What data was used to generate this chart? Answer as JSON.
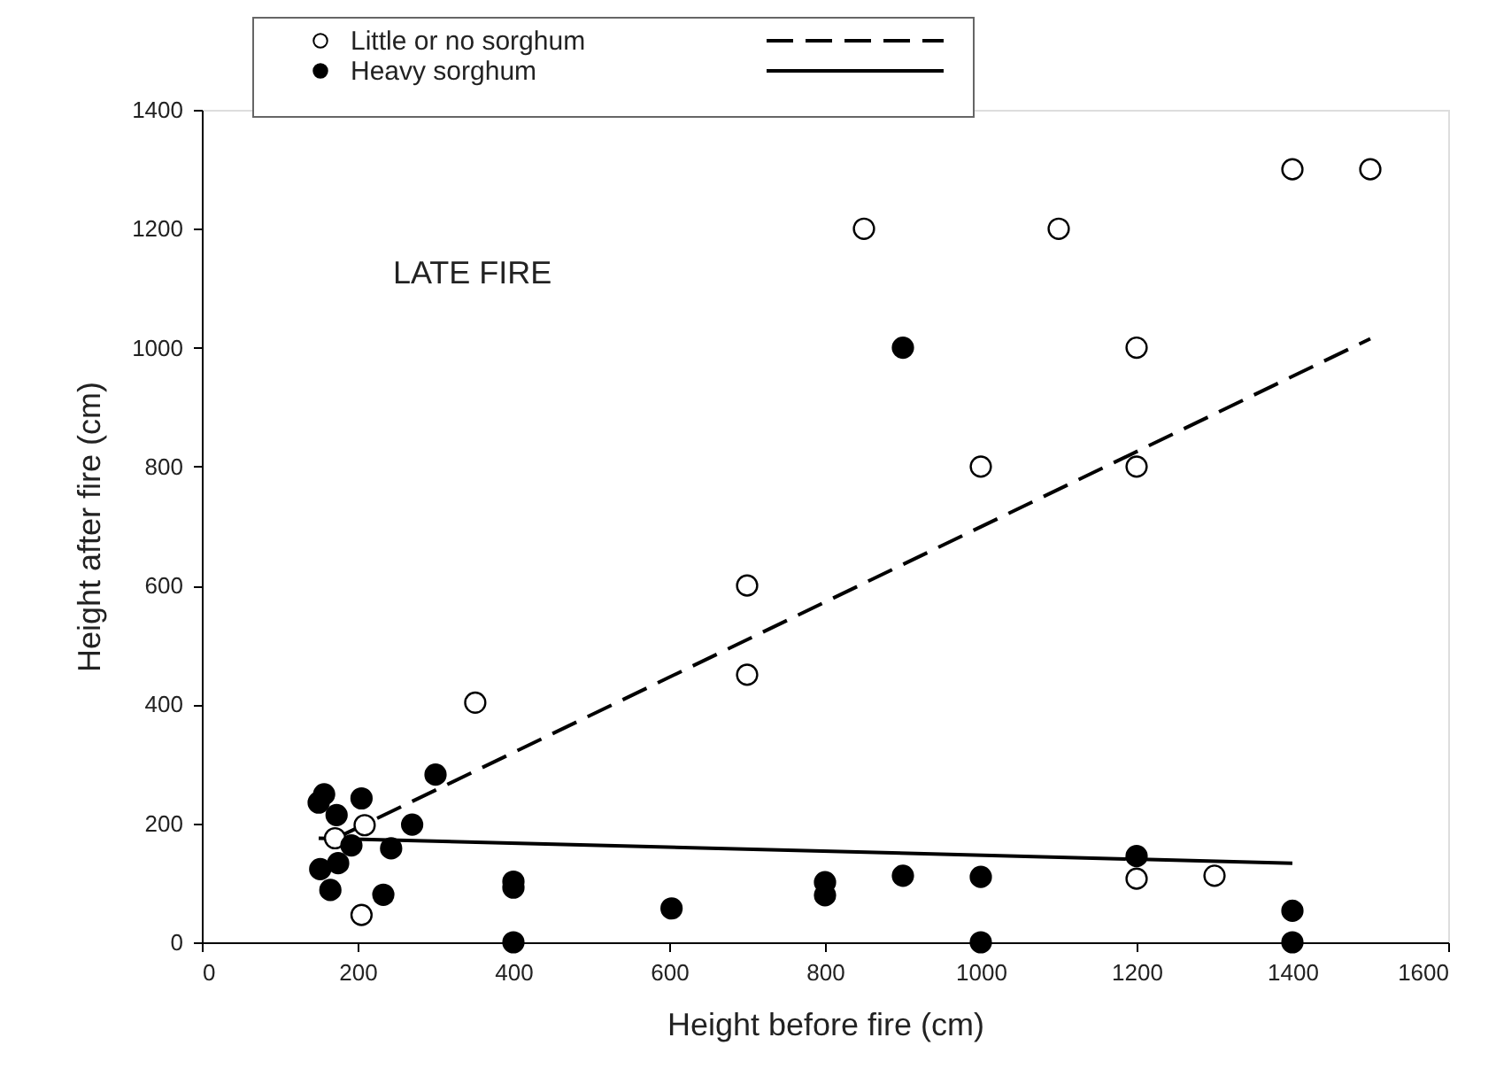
{
  "chart_data": {
    "type": "scatter",
    "xlabel": "Height before fire (cm)",
    "ylabel": "Height after fire (cm)",
    "annotations": [
      "LATE FIRE"
    ],
    "xlim": [
      0,
      1600
    ],
    "xticks": [
      0,
      200,
      400,
      600,
      800,
      1000,
      1200,
      1400,
      1600
    ],
    "ylim": [
      0,
      1400
    ],
    "yticks": [
      0,
      200,
      400,
      600,
      800,
      1000,
      1200,
      1400
    ],
    "grid": false,
    "legend": "top left",
    "marker": "circle",
    "series": [
      {
        "name": "Little or no sorghum",
        "color": "#ffffff",
        "x": [
          171,
          209,
          205,
          351,
          700,
          700,
          850,
          1100,
          1000,
          1200,
          1200,
          1400,
          1500,
          1200,
          1300
        ],
        "values": [
          175,
          197,
          46,
          403,
          450,
          600,
          1200,
          1200,
          800,
          800,
          1000,
          1300,
          1300,
          107,
          112
        ]
      },
      {
        "name": "Heavy sorghum",
        "color": "#000000",
        "x": [
          157,
          150,
          173,
          205,
          300,
          270,
          243,
          192,
          175,
          152,
          165,
          233,
          400,
          400,
          400,
          603,
          800,
          800,
          900,
          1000,
          1000,
          1200,
          1400,
          1400,
          900
        ],
        "values": [
          249,
          235,
          214,
          242,
          282,
          198,
          158,
          163,
          133,
          123,
          88,
          80,
          92,
          102,
          0,
          57,
          101,
          79,
          112,
          110,
          0,
          145,
          53,
          0,
          1000
        ]
      },
      {
        "type": "line",
        "color": "#000000",
        "marker": "none",
        "line_style": "dashed",
        "x": [
          180,
          1500
        ],
        "values": [
          180,
          1015
        ]
      },
      {
        "type": "line",
        "color": "#000000",
        "marker": "none",
        "line_style": "solid",
        "x": [
          150,
          1400
        ],
        "values": [
          175,
          133
        ]
      }
    ]
  }
}
